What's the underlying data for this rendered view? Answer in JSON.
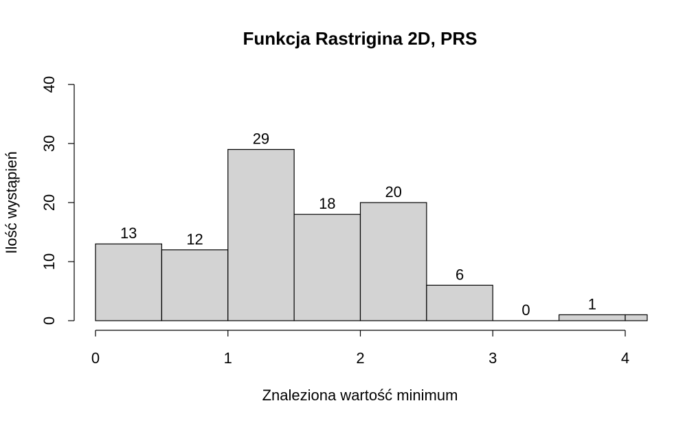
{
  "chart_data": {
    "type": "bar",
    "title": "Funkcja Rastrigina 2D, PRS",
    "xlabel": "Znaleziona wartość minimum",
    "ylabel": "Ilość wystąpień",
    "bins": [
      {
        "x0": 0.0,
        "x1": 0.5,
        "count": 13
      },
      {
        "x0": 0.5,
        "x1": 1.0,
        "count": 12
      },
      {
        "x0": 1.0,
        "x1": 1.5,
        "count": 29
      },
      {
        "x0": 1.5,
        "x1": 2.0,
        "count": 18
      },
      {
        "x0": 2.0,
        "x1": 2.5,
        "count": 20
      },
      {
        "x0": 2.5,
        "x1": 3.0,
        "count": 6
      },
      {
        "x0": 3.0,
        "x1": 3.5,
        "count": 0
      },
      {
        "x0": 3.5,
        "x1": 4.0,
        "count": 1
      },
      {
        "x0": 4.0,
        "x1": 4.5,
        "count": 1
      }
    ],
    "data_labels": [
      "13",
      "12",
      "29",
      "18",
      "20",
      "6",
      "0",
      "1"
    ],
    "xticks": [
      0,
      1,
      2,
      3,
      4
    ],
    "yticks": [
      0,
      10,
      20,
      30,
      40
    ],
    "xlim": [
      0,
      4.15
    ],
    "ylim": [
      0,
      40
    ],
    "bar_color": "#d3d3d3",
    "grid": false,
    "legend": "none"
  }
}
